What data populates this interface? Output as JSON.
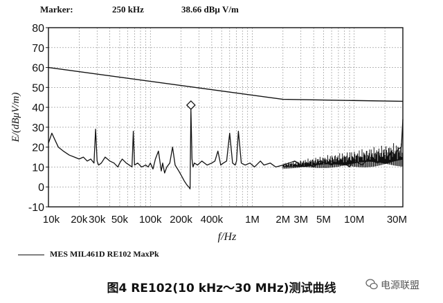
{
  "marker": {
    "label": "Marker:",
    "frequency": "250 kHz",
    "level": "38.66 dBμ V/m"
  },
  "legend": {
    "entry": "MES MIL461D RE102 MaxPk"
  },
  "caption": "图4 RE102(10 kHz～30 MHz)测试曲线",
  "watermark": {
    "text": "电源联盟",
    "icon": "wechat-icon"
  },
  "colors": {
    "trace": "#111111",
    "grid": "#888888"
  },
  "chart_data": {
    "type": "line",
    "xlabel": "f/Hz",
    "ylabel": "E/(dBμV/m)",
    "xscale": "log",
    "xlim": [
      10000,
      30000000
    ],
    "ylim": [
      -10,
      80
    ],
    "grid": true,
    "y_ticks": [
      -10,
      0,
      10,
      20,
      30,
      40,
      50,
      60,
      70,
      80
    ],
    "x_ticks": [
      {
        "value": 10000,
        "label": "10k"
      },
      {
        "value": 20000,
        "label": "20k"
      },
      {
        "value": 30000,
        "label": "30k"
      },
      {
        "value": 50000,
        "label": "50k"
      },
      {
        "value": 100000,
        "label": "100k"
      },
      {
        "value": 200000,
        "label": "200k"
      },
      {
        "value": 400000,
        "label": "400k"
      },
      {
        "value": 1000000,
        "label": "1M"
      },
      {
        "value": 2000000,
        "label": "2M"
      },
      {
        "value": 3000000,
        "label": "3M"
      },
      {
        "value": 5000000,
        "label": "5M"
      },
      {
        "value": 10000000,
        "label": "10M"
      },
      {
        "value": 30000000,
        "label": "30M"
      }
    ],
    "limit_line": {
      "x": [
        10000,
        2000000,
        30000000
      ],
      "y": [
        60,
        44,
        43
      ]
    },
    "marker_point": {
      "x": 250000,
      "y": 38.66
    },
    "series": [
      {
        "name": "MES MIL461D RE102 MaxPk",
        "x": [
          10000,
          10800,
          11500,
          12500,
          14000,
          16000,
          18000,
          20000,
          22000,
          24000,
          26000,
          28000,
          29000,
          30000,
          31000,
          33000,
          36000,
          40000,
          44000,
          48000,
          50000,
          53000,
          58000,
          62000,
          66000,
          68000,
          70000,
          75000,
          82000,
          90000,
          95000,
          100000,
          106000,
          112000,
          120000,
          128000,
          132000,
          138000,
          145000,
          155000,
          165000,
          175000,
          190000,
          200000,
          215000,
          228000,
          238000,
          245000,
          250000,
          256000,
          262000,
          270000,
          290000,
          320000,
          360000,
          400000,
          430000,
          460000,
          490000,
          520000,
          560000,
          600000,
          640000,
          680000,
          700000,
          730000,
          780000,
          850000,
          950000,
          1050000,
          1200000,
          1300000,
          1500000,
          1700000,
          2000000,
          2300000,
          2600000,
          3000000,
          3500000,
          4000000,
          4600000,
          5300000,
          6000000,
          7000000,
          8000000,
          9000000,
          10000000,
          11000000,
          12000000,
          13500000,
          15000000,
          17000000,
          19000000,
          21000000,
          23000000,
          25000000,
          27000000,
          29000000,
          30000000
        ],
        "values": [
          22,
          27,
          24,
          20,
          18,
          16,
          15,
          14,
          15,
          13,
          14,
          12,
          29,
          13,
          11,
          12,
          15,
          13,
          12,
          10,
          12,
          14,
          12,
          11,
          10,
          28,
          11,
          12,
          10,
          11,
          10,
          12,
          9,
          14,
          18,
          8,
          12,
          7,
          10,
          12,
          20,
          11,
          8,
          6,
          3,
          1,
          0,
          -1,
          39,
          14,
          10,
          12,
          11,
          13,
          11,
          12,
          13,
          18,
          11,
          12,
          13,
          27,
          12,
          11,
          13,
          28,
          12,
          11,
          12,
          10,
          13,
          11,
          12,
          10,
          11,
          12,
          13,
          11,
          12,
          10,
          13,
          12,
          11,
          13,
          12,
          10,
          14,
          12,
          11,
          14,
          13,
          12,
          15,
          13,
          18,
          16,
          19,
          20,
          34
        ]
      }
    ]
  }
}
